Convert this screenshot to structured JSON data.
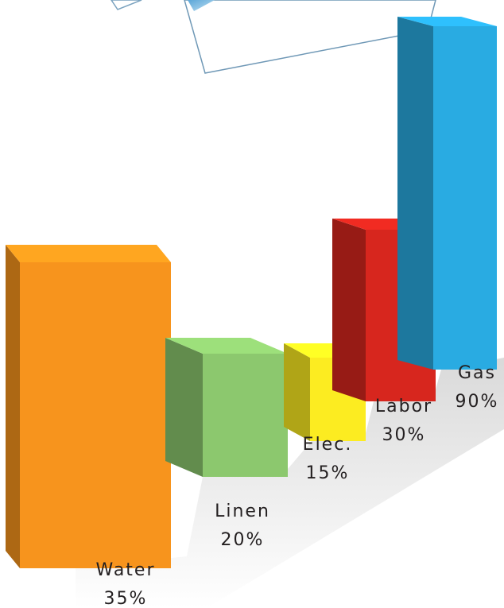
{
  "chart_data": {
    "type": "bar3d",
    "categories": [
      "Water",
      "Linen",
      "Elec.",
      "Labor",
      "Gas"
    ],
    "values": [
      35,
      20,
      15,
      30,
      90
    ],
    "value_labels": [
      "35%",
      "20%",
      "15%",
      "30%",
      "90%"
    ],
    "colors": [
      "#f7941d",
      "#8cc86e",
      "#fcec21",
      "#d7261e",
      "#29abe2"
    ]
  }
}
